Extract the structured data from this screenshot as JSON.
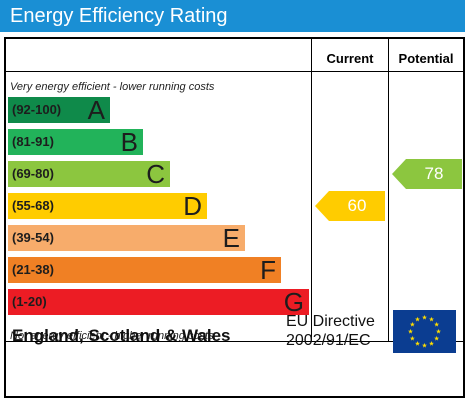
{
  "title": "Energy Efficiency Rating",
  "columns": {
    "current": "Current",
    "potential": "Potential"
  },
  "top_note": "Very energy efficient - lower running costs",
  "bottom_note": "Not energy efficient - higher running costs",
  "bands": [
    {
      "range": "(92-100)",
      "letter": "A",
      "color": "#0f8a4a"
    },
    {
      "range": "(81-91)",
      "letter": "B",
      "color": "#22b35a"
    },
    {
      "range": "(69-80)",
      "letter": "C",
      "color": "#8cc63f"
    },
    {
      "range": "(55-68)",
      "letter": "D",
      "color": "#ffcc00"
    },
    {
      "range": "(39-54)",
      "letter": "E",
      "color": "#f7ac6b"
    },
    {
      "range": "(21-38)",
      "letter": "F",
      "color": "#f08024"
    },
    {
      "range": "(1-20)",
      "letter": "G",
      "color": "#ec1c24"
    }
  ],
  "current": {
    "value": "60",
    "band": "D",
    "color": "#ffcc00"
  },
  "potential": {
    "value": "78",
    "band": "C",
    "color": "#8cc63f"
  },
  "footer": {
    "region": "England, Scotland & Wales",
    "directive_line1": "EU Directive",
    "directive_line2": "2002/91/EC"
  },
  "colors": {
    "header": "#1a8fd4",
    "flag": "#0b3d91",
    "stars": "#ffdd00"
  },
  "icons": {
    "flag": "eu-flag-icon"
  }
}
